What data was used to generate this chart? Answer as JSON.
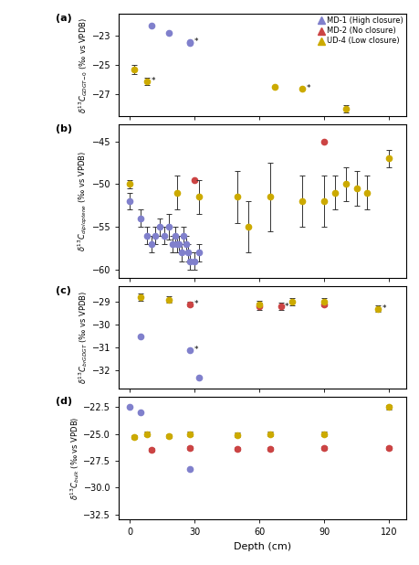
{
  "panel_a": {
    "MD1": {
      "x": [
        10,
        18,
        28,
        28
      ],
      "y": [
        -22.3,
        -22.8,
        -23.4,
        -23.5
      ],
      "yerr": [
        0,
        0,
        0,
        0
      ],
      "star": [
        false,
        false,
        true,
        false
      ]
    },
    "MD2": {
      "x": [],
      "y": [],
      "yerr": [],
      "star": []
    },
    "UD4": {
      "x": [
        2,
        8,
        67,
        80,
        100
      ],
      "y": [
        -25.3,
        -26.1,
        -26.5,
        -26.6,
        -28.0
      ],
      "yerr": [
        0.3,
        0.25,
        0,
        0,
        0.25
      ],
      "star": [
        false,
        true,
        false,
        true,
        false
      ]
    }
  },
  "panel_b": {
    "MD1": {
      "x": [
        0,
        5,
        8,
        10,
        12,
        14,
        16,
        18,
        20,
        21,
        22,
        23,
        24,
        25,
        26,
        27,
        28,
        30,
        32
      ],
      "y": [
        -52,
        -54,
        -56,
        -57,
        -56,
        -55,
        -56,
        -55,
        -57,
        -56,
        -57,
        -57,
        -58,
        -56,
        -57,
        -58,
        -59,
        -59,
        -58
      ],
      "yerr": [
        1,
        1,
        1,
        1,
        1,
        1,
        1,
        1.5,
        1,
        1,
        1,
        1,
        1,
        1,
        1,
        1,
        1,
        1,
        1
      ]
    },
    "MD2": {
      "x": [
        30,
        90
      ],
      "y": [
        -49.5,
        -45.0
      ],
      "yerr": [
        0,
        0
      ]
    },
    "UD4": {
      "x": [
        0,
        22,
        32,
        50,
        55,
        65,
        80,
        90,
        95,
        100,
        105,
        110,
        120
      ],
      "y": [
        -50,
        -51,
        -51.5,
        -51.5,
        -55,
        -51.5,
        -52,
        -52,
        -51,
        -50,
        -50.5,
        -51,
        -47
      ],
      "yerr": [
        0.5,
        2,
        2,
        3,
        3,
        4,
        3,
        3,
        2,
        2,
        2,
        2,
        1
      ]
    }
  },
  "panel_c": {
    "MD1": {
      "x": [
        5,
        28,
        32
      ],
      "y": [
        -30.5,
        -31.1,
        -32.3
      ],
      "yerr": [
        0,
        0,
        0
      ],
      "star": [
        false,
        true,
        false
      ]
    },
    "MD2": {
      "x": [
        28,
        60,
        70,
        90
      ],
      "y": [
        -29.1,
        -29.2,
        -29.2,
        -29.1
      ],
      "yerr": [
        0.1,
        0.15,
        0.15,
        0.1
      ],
      "star": [
        true,
        false,
        true,
        false
      ]
    },
    "UD4": {
      "x": [
        5,
        18,
        60,
        75,
        90,
        115
      ],
      "y": [
        -28.8,
        -28.9,
        -29.1,
        -29.0,
        -29.0,
        -29.3
      ],
      "yerr": [
        0.15,
        0.15,
        0.15,
        0.15,
        0.15,
        0.15
      ],
      "star": [
        false,
        false,
        false,
        false,
        false,
        true
      ]
    }
  },
  "panel_d": {
    "MD1": {
      "x": [
        0,
        5,
        28
      ],
      "y": [
        -22.5,
        -23.0,
        -28.3
      ],
      "yerr": [
        0,
        0,
        0
      ]
    },
    "MD2": {
      "x": [
        10,
        28,
        50,
        65,
        90,
        120
      ],
      "y": [
        -26.5,
        -26.3,
        -26.4,
        -26.4,
        -26.3,
        -26.3
      ],
      "yerr": [
        0.15,
        0.15,
        0.15,
        0.15,
        0.15,
        0.15
      ]
    },
    "UD4": {
      "x": [
        2,
        8,
        18,
        28,
        50,
        65,
        90,
        120
      ],
      "y": [
        -25.3,
        -25.0,
        -25.2,
        -25.0,
        -25.1,
        -25.0,
        -25.0,
        -22.5
      ],
      "yerr": [
        0.2,
        0.2,
        0.2,
        0.2,
        0.2,
        0.2,
        0.2,
        0.2
      ]
    }
  },
  "colors": {
    "MD1": "#8080cc",
    "MD2": "#cc4444",
    "UD4": "#ccaa00"
  },
  "xlim": [
    -5,
    128
  ],
  "panel_a_ylim": [
    -28.5,
    -21.5
  ],
  "panel_a_yticks": [
    -23,
    -25,
    -27
  ],
  "panel_b_ylim": [
    -61,
    -43
  ],
  "panel_b_yticks": [
    -45,
    -50,
    -55,
    -60
  ],
  "panel_c_ylim": [
    -32.8,
    -28.3
  ],
  "panel_c_yticks": [
    -29,
    -30,
    -31,
    -32
  ],
  "panel_d_ylim": [
    -33.0,
    -21.5
  ],
  "panel_d_yticks": [
    -22.5,
    -25.0,
    -27.5,
    -30.0,
    -32.5
  ],
  "xlabel": "Depth (cm)",
  "legend_labels": [
    "MD-1 (High closure)",
    "MD-2 (No closure)",
    "UD-4 (Low closure)"
  ]
}
